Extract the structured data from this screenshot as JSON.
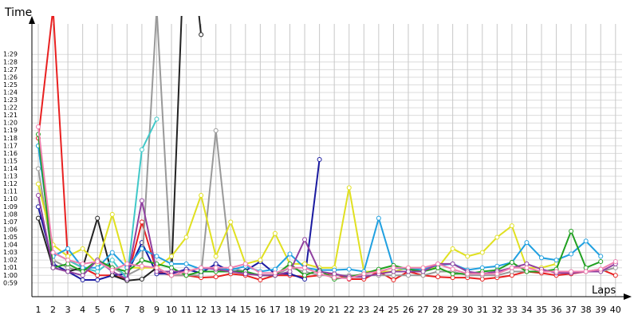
{
  "chart_data": {
    "type": "line",
    "title": "Time",
    "x_label": "Laps",
    "x": [
      1,
      2,
      3,
      4,
      5,
      6,
      7,
      8,
      9,
      10,
      11,
      12,
      13,
      14,
      15,
      16,
      17,
      18,
      19,
      20,
      21,
      22,
      23,
      24,
      25,
      26,
      27,
      28,
      29,
      30,
      31,
      32,
      33,
      34,
      35,
      36,
      37,
      38,
      39,
      40
    ],
    "xlim": [
      0.57,
      40.98
    ],
    "xticks": [
      1,
      2,
      3,
      4,
      5,
      6,
      7,
      8,
      9,
      10,
      11,
      12,
      13,
      14,
      15,
      16,
      17,
      18,
      19,
      20,
      21,
      22,
      23,
      24,
      25,
      26,
      27,
      28,
      29,
      30,
      31,
      32,
      33,
      34,
      35,
      36,
      37,
      38,
      39,
      40
    ],
    "ylim": [
      57.2,
      93
    ],
    "yticks": [
      {
        "value": 59,
        "label": "0:59"
      },
      {
        "value": 60,
        "label": "1:00"
      },
      {
        "value": 61,
        "label": "1:01"
      },
      {
        "value": 62,
        "label": "1:02"
      },
      {
        "value": 63,
        "label": "1:03"
      },
      {
        "value": 64,
        "label": "1:04"
      },
      {
        "value": 65,
        "label": "1:05"
      },
      {
        "value": 66,
        "label": "1:06"
      },
      {
        "value": 67,
        "label": "1:07"
      },
      {
        "value": 68,
        "label": "1:08"
      },
      {
        "value": 69,
        "label": "1:09"
      },
      {
        "value": 70,
        "label": "1:10"
      },
      {
        "value": 71,
        "label": "1:11"
      },
      {
        "value": 72,
        "label": "1:12"
      },
      {
        "value": 73,
        "label": "1:13"
      },
      {
        "value": 74,
        "label": "1:14"
      },
      {
        "value": 75,
        "label": "1:15"
      },
      {
        "value": 76,
        "label": "1:16"
      },
      {
        "value": 77,
        "label": "1:17"
      },
      {
        "value": 78,
        "label": "1:18"
      },
      {
        "value": 79,
        "label": "1:19"
      },
      {
        "value": 80,
        "label": "1:20"
      },
      {
        "value": 81,
        "label": "1:21"
      },
      {
        "value": 82,
        "label": "1:22"
      },
      {
        "value": 83,
        "label": "1:23"
      },
      {
        "value": 84,
        "label": "1:24"
      },
      {
        "value": 85,
        "label": "1:25"
      },
      {
        "value": 86,
        "label": "1:26"
      },
      {
        "value": 87,
        "label": "1:27"
      },
      {
        "value": 88,
        "label": "1:28"
      },
      {
        "value": 89,
        "label": "1:29"
      }
    ],
    "grid": true,
    "series": [
      {
        "color": "#e82020",
        "values": [
          78,
          95,
          62,
          61,
          60,
          60,
          59.5,
          67,
          60.5,
          60,
          60,
          59.7,
          59.8,
          60.2,
          60,
          59.4,
          60,
          60,
          59.8,
          60,
          60.2,
          59.5,
          59.5,
          60.5,
          59.4,
          60.5,
          60,
          59.8,
          59.7,
          59.7,
          59.5,
          59.7,
          60,
          60.5,
          60.3,
          60,
          60.2,
          60.5,
          60.8,
          60
        ]
      },
      {
        "color": "#1a1aa0",
        "values": [
          69,
          61.5,
          60.5,
          59.4,
          59.4,
          60,
          60.2,
          64.3,
          60.2,
          60.2,
          60.8,
          60.3,
          61.5,
          60.5,
          60.6,
          61.8,
          60.2,
          60.2,
          59.5,
          75.2,
          null,
          null,
          null,
          null,
          null,
          null,
          null,
          null,
          null,
          null,
          null,
          null,
          null,
          null,
          null,
          null,
          null,
          null,
          null,
          null
        ]
      },
      {
        "color": "#999999",
        "values": [
          74,
          62,
          61,
          60.5,
          62,
          61,
          60,
          61,
          95,
          60,
          60,
          60,
          79,
          61,
          60.5,
          60,
          60,
          61,
          60.5,
          60,
          60,
          60,
          60,
          60,
          60,
          60,
          60,
          60.5,
          60.5,
          60,
          60,
          60,
          60.5,
          60.5,
          60.5,
          60.5,
          60.5,
          60.5,
          60.5,
          61
        ]
      },
      {
        "color": "#222222",
        "values": [
          67.5,
          61,
          60.5,
          61,
          67.5,
          60,
          59.3,
          59.5,
          61,
          60,
          110,
          91.6,
          null,
          null,
          null,
          null,
          null,
          null,
          null,
          null,
          null,
          null,
          null,
          null,
          null,
          null,
          null,
          null,
          null,
          null,
          null,
          null,
          null,
          null,
          null,
          null,
          null,
          null,
          null,
          null
        ]
      },
      {
        "color": "#40c8c8",
        "values": [
          77,
          63,
          62,
          61,
          60.5,
          62,
          59.5,
          76.5,
          80.5,
          null,
          null,
          null,
          null,
          null,
          null,
          null,
          null,
          null,
          null,
          null,
          null,
          null,
          null,
          null,
          null,
          null,
          null,
          null,
          null,
          null,
          null,
          null,
          null,
          null,
          null,
          null,
          null,
          null,
          null,
          null
        ]
      },
      {
        "color": "#e0e020",
        "values": [
          72,
          64,
          62.5,
          63.5,
          61.5,
          68,
          61,
          61,
          61,
          62.5,
          65,
          70.5,
          62.5,
          67,
          61.5,
          62,
          65.5,
          61.5,
          61.5,
          61,
          61,
          71.5,
          60.5,
          60.5,
          60.5,
          61,
          61,
          61,
          63.5,
          62.5,
          63,
          65,
          66.5,
          61,
          61,
          61.5,
          null,
          null,
          null,
          null
        ]
      },
      {
        "color": "#20a0e0",
        "values": [
          77,
          62.5,
          63.5,
          61,
          61,
          63,
          61,
          63.5,
          62.5,
          61.5,
          61.5,
          60.8,
          61,
          60.7,
          61.2,
          60.5,
          60.8,
          62.8,
          61,
          60.7,
          60.7,
          60.8,
          60.5,
          67.5,
          61,
          60.8,
          60.8,
          61.3,
          61.5,
          60.7,
          61,
          61.2,
          61.7,
          64.3,
          62.3,
          62,
          62.8,
          64.5,
          62.5,
          null
        ]
      },
      {
        "color": "#20a020",
        "values": [
          78.5,
          61,
          61.5,
          60.5,
          62,
          61,
          60.5,
          62,
          61.5,
          61,
          60,
          60.5,
          60.5,
          60.5,
          60.5,
          60,
          60,
          61.5,
          60,
          60.7,
          59.5,
          59.8,
          60.2,
          60.8,
          61.3,
          60.8,
          60.5,
          61,
          60.2,
          60.2,
          60.5,
          60.7,
          61.7,
          60.5,
          60.5,
          60.8,
          65.8,
          61,
          61.8,
          null
        ]
      },
      {
        "color": "#9040a0",
        "values": [
          70.5,
          61,
          60.5,
          60,
          62,
          60.5,
          59.5,
          69.8,
          60.5,
          60.5,
          60.5,
          61,
          60.8,
          60.5,
          60.2,
          60,
          60,
          60.5,
          64.7,
          60.5,
          60.2,
          59.8,
          59.8,
          60.2,
          60.5,
          60.5,
          60.5,
          61.5,
          61.5,
          60.5,
          60.2,
          60.5,
          61,
          61.5,
          60.8,
          60.3,
          60.3,
          60.5,
          60.5,
          61.5
        ]
      },
      {
        "color": "#f080b0",
        "values": [
          79.5,
          63,
          62,
          61.5,
          61.8,
          60.7,
          61.5,
          61.2,
          61,
          60,
          60.5,
          61,
          61,
          61,
          61.5,
          60.3,
          60.3,
          61,
          61,
          60.2,
          59.7,
          59.6,
          60.2,
          60.5,
          61,
          61,
          61,
          61.5,
          60.8,
          60.2,
          60.2,
          60.2,
          61,
          61,
          60.5,
          60.5,
          60.5,
          60.5,
          60.8,
          61.8
        ]
      }
    ]
  }
}
